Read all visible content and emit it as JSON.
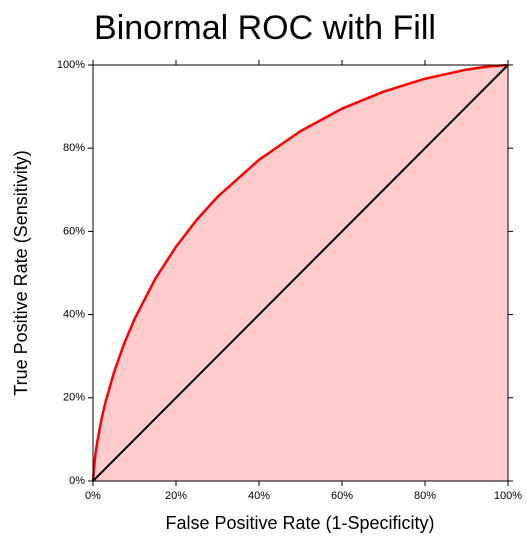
{
  "chart_data": {
    "type": "area",
    "title": "Binormal ROC with Fill",
    "x_label": "False Positive Rate (1-Specificity)",
    "y_label": "True Positive Rate (Sensitivity)",
    "series": [
      {
        "color": "#ff0000",
        "fill": "#ffcccc",
        "x": [
          0,
          0.5,
          1,
          2,
          3,
          5,
          7.5,
          10,
          15,
          20,
          25,
          30,
          40,
          50,
          60,
          70,
          80,
          90,
          95,
          100
        ],
        "values": [
          0,
          5.75,
          9.2,
          14.6,
          18.9,
          25.9,
          33.0,
          38.9,
          48.6,
          56.3,
          62.8,
          68.3,
          77.2,
          84.1,
          89.5,
          93.6,
          96.7,
          98.9,
          99.6,
          100
        ]
      }
    ],
    "diagonal": {
      "color": "#000000",
      "x": [
        0,
        100
      ],
      "values": [
        0,
        100
      ]
    },
    "xlim": [
      0,
      100
    ],
    "ylim": [
      0,
      100
    ],
    "xticks": [
      {
        "value": 0,
        "label": "0%"
      },
      {
        "value": 20,
        "label": "20%"
      },
      {
        "value": 40,
        "label": "40%"
      },
      {
        "value": 60,
        "label": "60%"
      },
      {
        "value": 80,
        "label": "80%"
      },
      {
        "value": 100,
        "label": "100%"
      }
    ],
    "yticks": [
      {
        "value": 0,
        "label": "0%"
      },
      {
        "value": 20,
        "label": "20%"
      },
      {
        "value": 40,
        "label": "40%"
      },
      {
        "value": 60,
        "label": "60%"
      },
      {
        "value": 80,
        "label": "80%"
      },
      {
        "value": 100,
        "label": "100%"
      }
    ]
  }
}
